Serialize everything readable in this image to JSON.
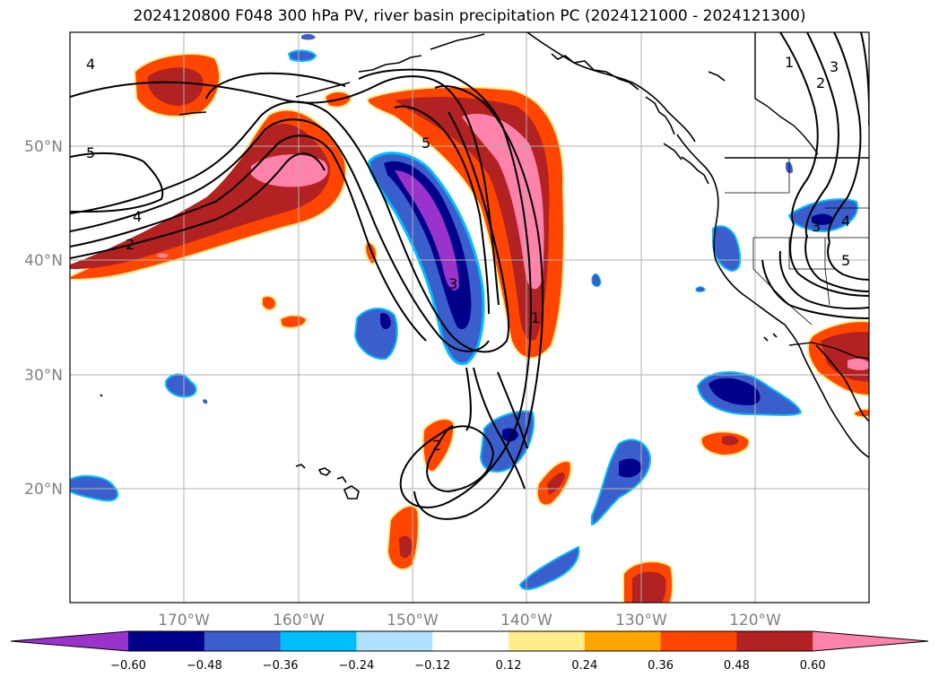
{
  "title": "2024120800 F048 300 hPa PV, river basin precipitation PC (2024121000 - 2024121300)",
  "lat_labels": [
    "50°N",
    "40°N",
    "30°N",
    "20°N"
  ],
  "lon_labels": [
    "170°W",
    "160°W",
    "150°W",
    "140°W",
    "130°W",
    "120°W"
  ],
  "colorbar": {
    "ticks": [
      "−0.60",
      "−0.48",
      "−0.36",
      "−0.24",
      "−0.12",
      "0.12",
      "0.24",
      "0.36",
      "0.48",
      "0.60"
    ],
    "colors": [
      "#9933cc",
      "#00008b",
      "#3a5fcd",
      "#00bfff",
      "#b0e2ff",
      "#ffffff",
      "#ffec8b",
      "#ffa500",
      "#ff4500",
      "#b22222",
      "#ff82ab"
    ]
  },
  "pv_contour_labels": [
    "4",
    "5",
    "4",
    "2",
    "5",
    "3",
    "1",
    "2",
    "1",
    "2",
    "3",
    "3",
    "4",
    "5"
  ]
}
